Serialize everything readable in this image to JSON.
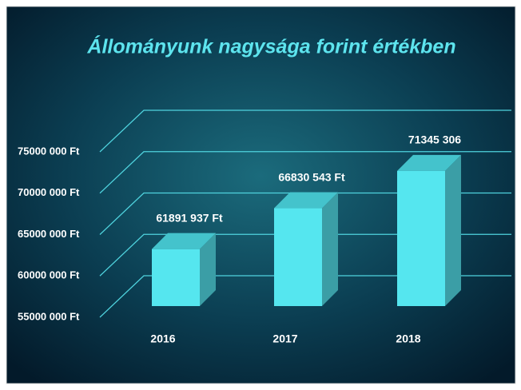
{
  "chart_data": {
    "type": "bar",
    "title": "Állományunk nagysága forint értékben",
    "categories": [
      "2016",
      "2017",
      "2018"
    ],
    "values": [
      61891937,
      66830543,
      71345306
    ],
    "value_labels": [
      "61891 937 Ft",
      "66830 543 Ft",
      "71345 306"
    ],
    "color": "#55e6ef",
    "ylim": [
      55000000,
      75000000
    ],
    "yticks": [
      {
        "value": 55000000,
        "label": "55000 000 Ft"
      },
      {
        "value": 60000000,
        "label": "60000 000 Ft"
      },
      {
        "value": 65000000,
        "label": "65000 000 Ft"
      },
      {
        "value": 70000000,
        "label": "70000 000 Ft"
      },
      {
        "value": 75000000,
        "label": "75000 000 Ft"
      }
    ],
    "grid": true
  }
}
